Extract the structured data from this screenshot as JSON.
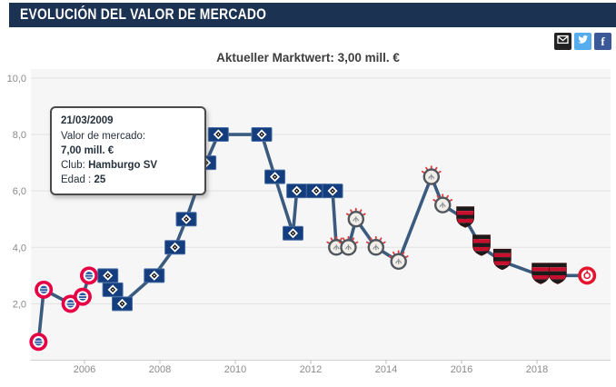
{
  "header": {
    "title": "EVOLUCIÓN DEL VALOR DE MERCADO"
  },
  "share": {
    "email_icon": "envelope-icon",
    "twitter_icon": "twitter-bird-icon",
    "facebook_glyph": "f"
  },
  "chart_header": {
    "current_value": "Aktueller Marktwert: 3,00 mill. €"
  },
  "tooltip": {
    "date": "21/03/2009",
    "value_label": "Valor de mercado:",
    "value": "7,00 mill. €",
    "club_label": "Club:",
    "club": "Hamburgo SV",
    "age_label": "Edad :",
    "age": "25"
  },
  "colors": {
    "header_bg": "#1c3252",
    "line": "#3a5a7e",
    "plot_bg": "#f6f6f6",
    "grid": "#e2e2e2",
    "axis": "#cfcfcf",
    "tick_text": "#8a8a8a",
    "email": "#222222",
    "twitter": "#55acee",
    "facebook": "#3b5998",
    "bayern_red": "#e50046",
    "bayern_blue": "#2a55a0",
    "hsv_blue": "#143d7e",
    "flamengo_red": "#c8102e",
    "flamengo_black": "#1b1b1b",
    "inter_red": "#e5142d",
    "corinthians_ring": "#50565e",
    "corinthians_fill": "#f1eee8",
    "corinthians_spike": "#e23b3b"
  },
  "chart_data": {
    "type": "line",
    "title": "Aktueller Marktwert: 3,00 mill. €",
    "xlabel": "",
    "ylabel": "",
    "unit": "mill. €",
    "series_name": "Valor de mercado",
    "grid": true,
    "ylim": [
      0,
      10
    ],
    "y_tick_values": [
      10,
      8,
      6,
      4,
      2
    ],
    "y_tick_labels": [
      "10,0",
      "8,0",
      "6,0",
      "4,0",
      "2,0"
    ],
    "x_tick_values": [
      2006,
      2008,
      2010,
      2012,
      2014,
      2016,
      2018
    ],
    "x_tick_labels": [
      "2006",
      "2008",
      "2010",
      "2012",
      "2014",
      "2016",
      "2018"
    ],
    "highlighted_point": {
      "date": "21/03/2009",
      "value": 7.0,
      "club": "Hamburgo SV",
      "age": 25
    },
    "points": [
      {
        "x": 2004.78,
        "y": 0.65,
        "club": "bayern-munich"
      },
      {
        "x": 2004.92,
        "y": 2.5,
        "club": "bayern-munich"
      },
      {
        "x": 2005.63,
        "y": 2.0,
        "club": "bayern-munich"
      },
      {
        "x": 2005.95,
        "y": 2.25,
        "club": "bayern-munich"
      },
      {
        "x": 2006.12,
        "y": 3.0,
        "club": "bayern-munich"
      },
      {
        "x": 2006.62,
        "y": 3.0,
        "club": "hamburger-sv"
      },
      {
        "x": 2006.75,
        "y": 2.5,
        "club": "hamburger-sv"
      },
      {
        "x": 2007.0,
        "y": 2.0,
        "club": "hamburger-sv"
      },
      {
        "x": 2007.85,
        "y": 3.0,
        "club": "hamburger-sv"
      },
      {
        "x": 2008.4,
        "y": 4.0,
        "club": "hamburger-sv"
      },
      {
        "x": 2008.7,
        "y": 5.0,
        "club": "hamburger-sv"
      },
      {
        "x": 2009.22,
        "y": 7.0,
        "club": "hamburger-sv"
      },
      {
        "x": 2009.55,
        "y": 8.0,
        "club": "hamburger-sv"
      },
      {
        "x": 2010.7,
        "y": 8.0,
        "club": "hamburger-sv"
      },
      {
        "x": 2011.05,
        "y": 6.5,
        "club": "hamburger-sv"
      },
      {
        "x": 2011.53,
        "y": 4.5,
        "club": "hamburger-sv"
      },
      {
        "x": 2011.63,
        "y": 6.0,
        "club": "hamburger-sv"
      },
      {
        "x": 2012.15,
        "y": 6.0,
        "club": "hamburger-sv"
      },
      {
        "x": 2012.58,
        "y": 6.0,
        "club": "hamburger-sv"
      },
      {
        "x": 2012.68,
        "y": 4.0,
        "club": "corinthians"
      },
      {
        "x": 2013.0,
        "y": 4.0,
        "club": "corinthians"
      },
      {
        "x": 2013.2,
        "y": 5.0,
        "club": "corinthians"
      },
      {
        "x": 2013.73,
        "y": 4.0,
        "club": "corinthians"
      },
      {
        "x": 2014.33,
        "y": 3.5,
        "club": "corinthians"
      },
      {
        "x": 2015.2,
        "y": 6.5,
        "club": "corinthians"
      },
      {
        "x": 2015.5,
        "y": 5.5,
        "club": "corinthians"
      },
      {
        "x": 2016.1,
        "y": 5.0,
        "club": "flamengo"
      },
      {
        "x": 2016.53,
        "y": 4.0,
        "club": "flamengo"
      },
      {
        "x": 2017.08,
        "y": 3.5,
        "club": "flamengo"
      },
      {
        "x": 2018.1,
        "y": 3.0,
        "club": "flamengo"
      },
      {
        "x": 2018.55,
        "y": 3.0,
        "club": "flamengo"
      },
      {
        "x": 2019.33,
        "y": 3.0,
        "club": "internacional"
      }
    ]
  }
}
